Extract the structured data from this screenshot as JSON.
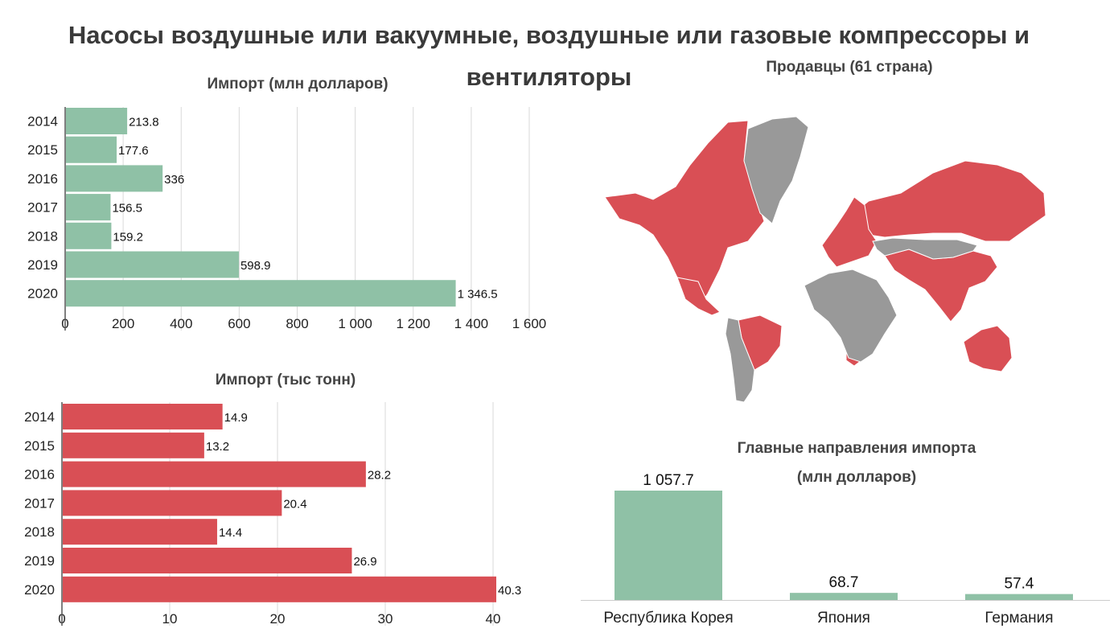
{
  "title": "Насосы воздушные или вакуумные, воздушные или газовые компрессоры и вентиляторы",
  "map": {
    "title": "Продавцы (61 страна)",
    "colors": {
      "seller": "#d94f55",
      "other": "#999999"
    }
  },
  "chart_data": [
    {
      "type": "bar",
      "orientation": "horizontal",
      "title": "Импорт (млн долларов)",
      "categories": [
        "2014",
        "2015",
        "2016",
        "2017",
        "2018",
        "2019",
        "2020"
      ],
      "values": [
        213.8,
        177.6,
        336,
        156.5,
        159.2,
        598.9,
        1346.5
      ],
      "value_labels": [
        "213.8",
        "177.6",
        "336",
        "156.5",
        "159.2",
        "598.9",
        "1 346.5"
      ],
      "xlim": [
        0,
        1600
      ],
      "xticks": [
        0,
        200,
        400,
        600,
        800,
        1000,
        1200,
        1400,
        1600
      ],
      "xtick_labels": [
        "0",
        "200",
        "400",
        "600",
        "800",
        "1 000",
        "1 200",
        "1 400",
        "1 600"
      ],
      "color": "#8fc1a6",
      "grid": true
    },
    {
      "type": "bar",
      "orientation": "horizontal",
      "title": "Импорт (тыс тонн)",
      "categories": [
        "2014",
        "2015",
        "2016",
        "2017",
        "2018",
        "2019",
        "2020"
      ],
      "values": [
        14.9,
        13.2,
        28.2,
        20.4,
        14.4,
        26.9,
        40.3
      ],
      "value_labels": [
        "14.9",
        "13.2",
        "28.2",
        "20.4",
        "14.4",
        "26.9",
        "40.3"
      ],
      "xlim": [
        0,
        40.3
      ],
      "xticks": [
        0,
        10,
        20,
        30,
        40
      ],
      "xtick_labels": [
        "0",
        "10",
        "20",
        "30",
        "40"
      ],
      "color": "#d94f55",
      "grid": true
    },
    {
      "type": "bar",
      "orientation": "vertical",
      "title": "Главные направления импорта (млн долларов)",
      "title_lines": [
        "Главные направления импорта",
        "(млн долларов)"
      ],
      "categories": [
        "Республика Корея",
        "Япония",
        "Германия"
      ],
      "values": [
        1057.7,
        68.7,
        57.4
      ],
      "value_labels": [
        "1 057.7",
        "68.7",
        "57.4"
      ],
      "ylim": [
        0,
        1057.7
      ],
      "color": "#8fc1a6",
      "grid": false
    }
  ]
}
